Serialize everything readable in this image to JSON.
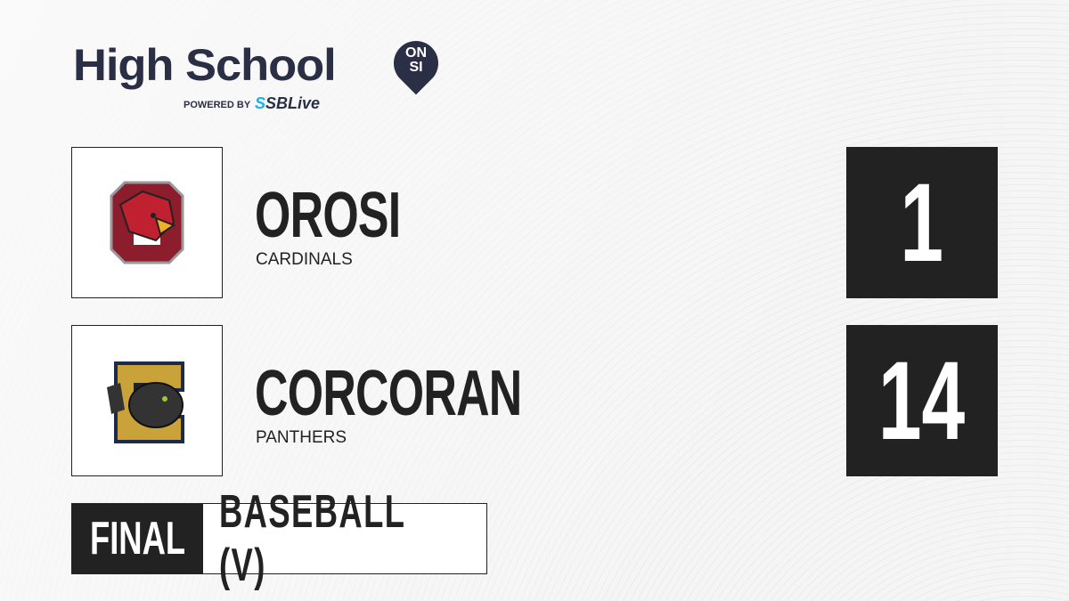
{
  "brand": {
    "title": "High School",
    "badge_top": "ON",
    "badge_bottom": "SI",
    "powered_by": "POWERED BY",
    "partner_prefix": "S",
    "partner": "SBLive",
    "accent": "#1bb0e8",
    "navy": "#2b2f45"
  },
  "teams": [
    {
      "name": "OROSI",
      "mascot": "CARDINALS",
      "score": "1",
      "logo_color": "#8b1d2c"
    },
    {
      "name": "CORCORAN",
      "mascot": "PANTHERS",
      "score": "14",
      "logo_color": "#c9a23a"
    }
  ],
  "status": {
    "label": "FINAL",
    "sport": "BASEBALL (V)"
  }
}
